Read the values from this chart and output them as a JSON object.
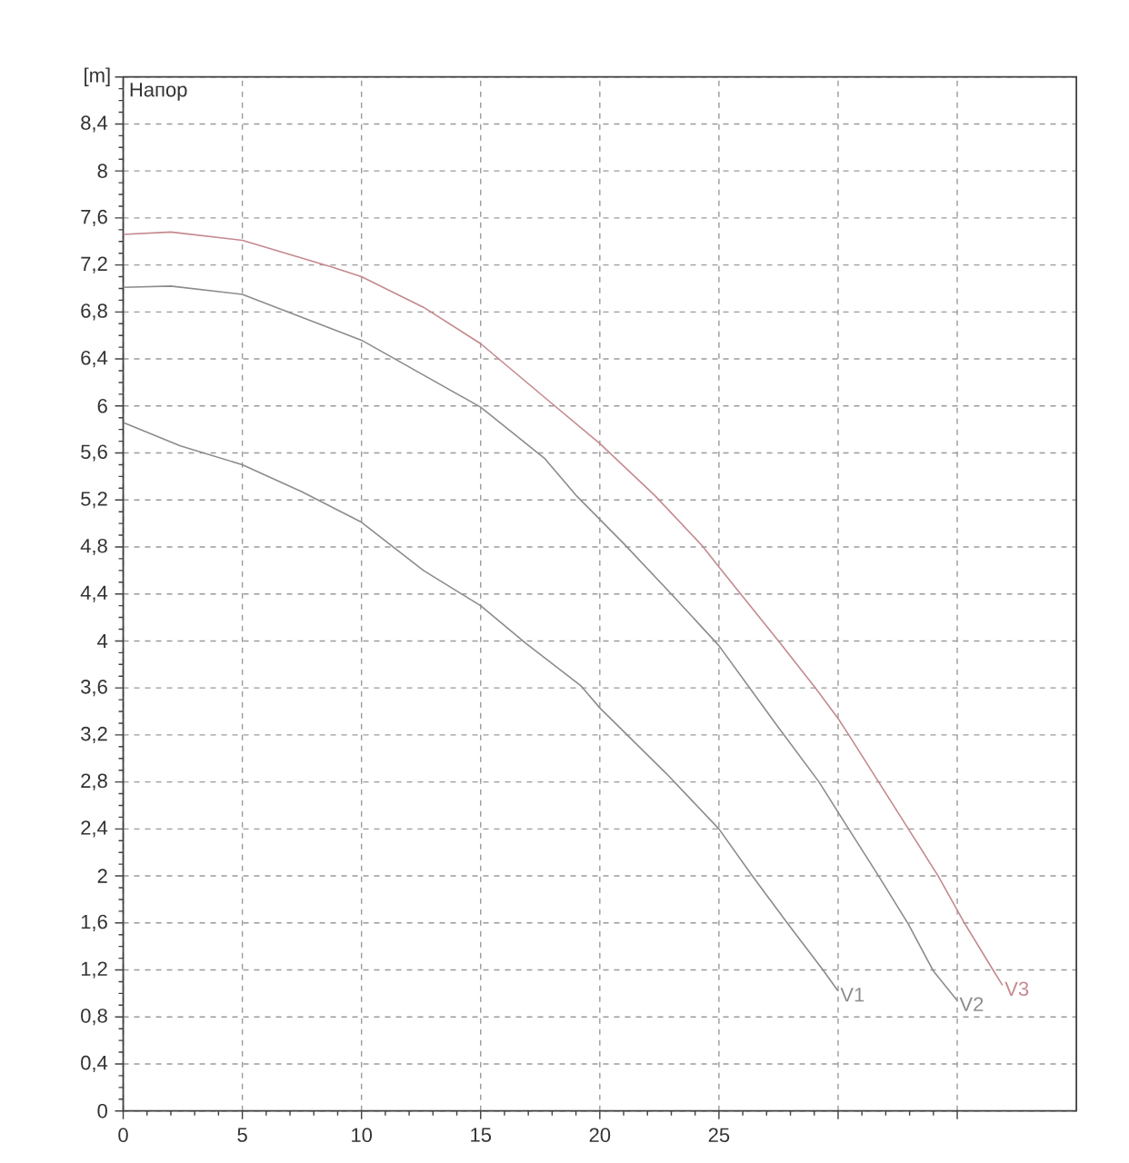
{
  "chart_data": {
    "type": "line",
    "title": "Напор",
    "ylabel": "[m]",
    "xlim": [
      0,
      40
    ],
    "xticks": [
      0,
      5,
      10,
      15,
      20,
      25,
      {
        "value": 30,
        "label": null
      },
      {
        "value": 35,
        "label": null
      }
    ],
    "ylim": [
      0,
      8.8
    ],
    "yticks": [
      0,
      {
        "value": 0.4,
        "label": "0,4"
      },
      {
        "value": 0.8,
        "label": "0,8"
      },
      {
        "value": 1.2,
        "label": "1,2"
      },
      {
        "value": 1.6,
        "label": "1,6"
      },
      2,
      {
        "value": 2.4,
        "label": "2,4"
      },
      {
        "value": 2.8,
        "label": "2,8"
      },
      {
        "value": 3.2,
        "label": "3,2"
      },
      {
        "value": 3.6,
        "label": "3,6"
      },
      4,
      {
        "value": 4.4,
        "label": "4,4"
      },
      {
        "value": 4.8,
        "label": "4,8"
      },
      {
        "value": 5.2,
        "label": "5,2"
      },
      {
        "value": 5.6,
        "label": "5,6"
      },
      6,
      {
        "value": 6.4,
        "label": "6,4"
      },
      {
        "value": 6.8,
        "label": "6,8"
      },
      {
        "value": 7.2,
        "label": "7,2"
      },
      {
        "value": 7.6,
        "label": "7,6"
      },
      8,
      {
        "value": 8.4,
        "label": "8,4"
      },
      {
        "value": 8.8,
        "label": null
      }
    ],
    "grid": true,
    "marker": "none",
    "line_style": "solid",
    "series": [
      {
        "name": "V1",
        "color": "#8c8c8c",
        "x": [
          0,
          2.4,
          5,
          7.5,
          10,
          12.6,
          15,
          16.9,
          19.2,
          20,
          22.8,
          25,
          26.4,
          27.9,
          29.4,
          30
        ],
        "values": [
          5.86,
          5.66,
          5.5,
          5.27,
          5.01,
          4.6,
          4.3,
          3.98,
          3.62,
          3.43,
          2.87,
          2.4,
          2.0,
          1.59,
          1.19,
          1.02
        ]
      },
      {
        "name": "V2",
        "color": "#8c8c8c",
        "x": [
          0,
          2,
          5,
          10,
          15,
          17.7,
          19,
          21,
          23,
          25,
          27.4,
          29.2,
          30.1,
          31.7,
          32.95,
          34,
          35
        ],
        "values": [
          7.01,
          7.02,
          6.95,
          6.56,
          5.99,
          5.55,
          5.24,
          4.83,
          4.4,
          3.96,
          3.29,
          2.8,
          2.51,
          2.0,
          1.59,
          1.19,
          0.94
        ]
      },
      {
        "name": "V3",
        "color": "#c4898e",
        "x": [
          0,
          2,
          5,
          8.8,
          10,
          12.6,
          15,
          17.7,
          20,
          22.3,
          24.3,
          25,
          27.5,
          29.05,
          30,
          30.45,
          31.7,
          32.95,
          34.2,
          35.3,
          36.5,
          36.9
        ],
        "values": [
          7.46,
          7.48,
          7.41,
          7.18,
          7.1,
          6.84,
          6.53,
          6.07,
          5.68,
          5.24,
          4.81,
          4.63,
          4.0,
          3.6,
          3.34,
          3.2,
          2.8,
          2.4,
          2.0,
          1.6,
          1.2,
          1.07
        ]
      }
    ]
  }
}
